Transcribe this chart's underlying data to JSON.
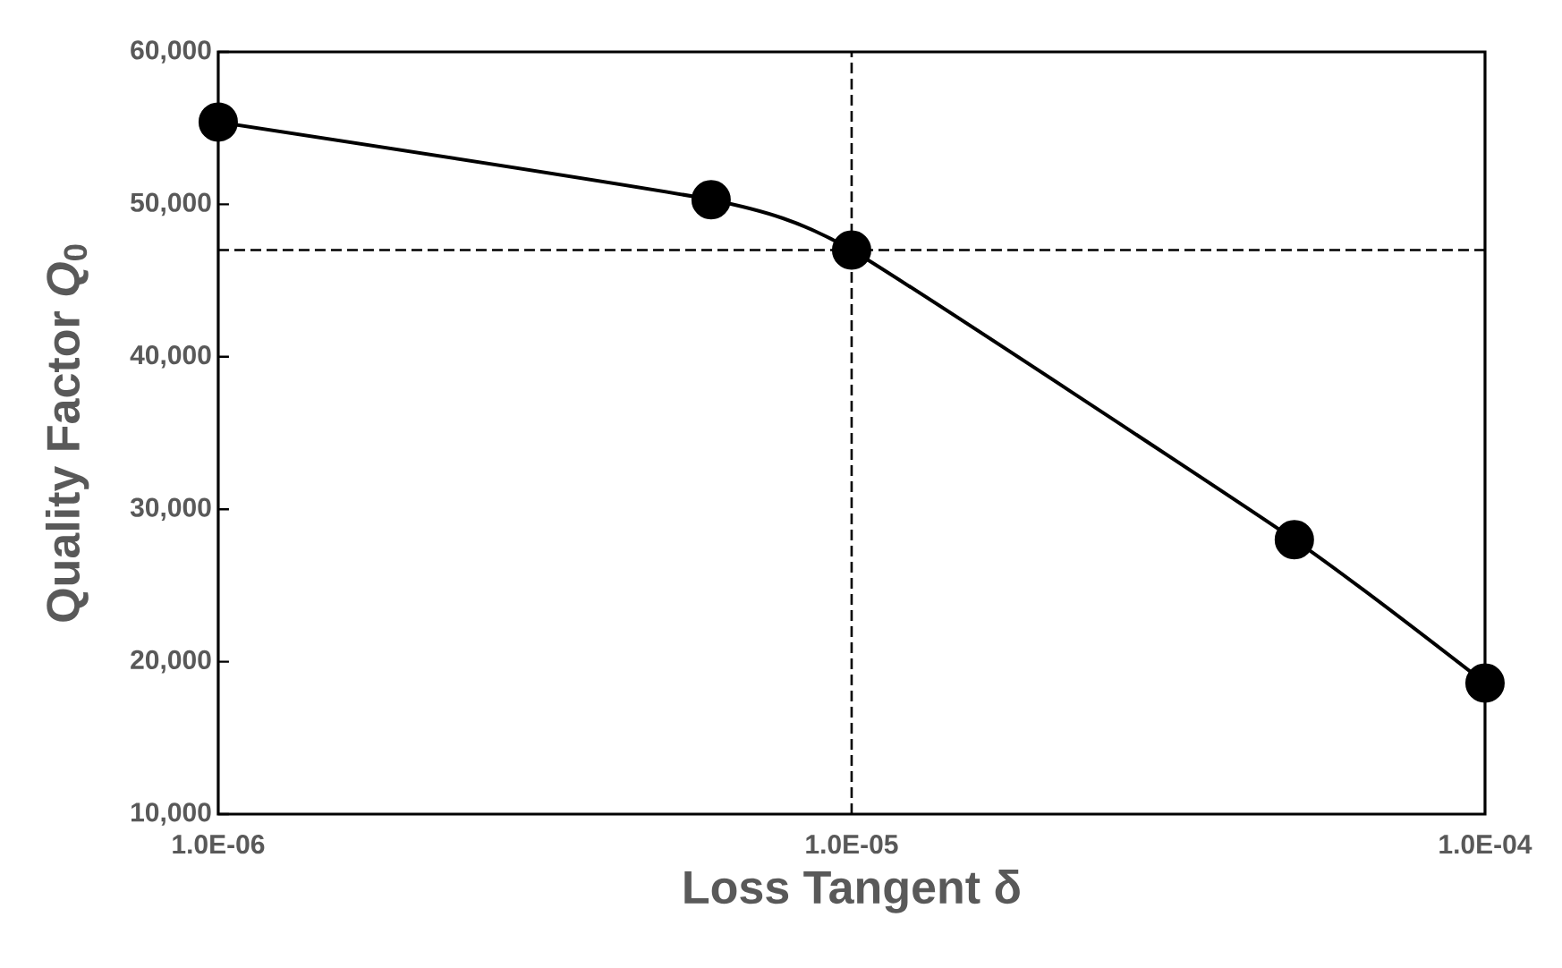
{
  "chart_data": {
    "type": "line",
    "xlabel": "Loss Tangent δ",
    "ylabel": "Quality Factor *Q*$_{0}$",
    "log": "x",
    "x": [
      1e-06,
      6e-06,
      1e-05,
      5e-05,
      0.0001
    ],
    "series": [
      {
        "color": "#000000",
        "values": [
          55400,
          50300,
          47000,
          28000,
          18600
        ]
      }
    ],
    "xlim": [
      1e-06,
      0.0001
    ],
    "ylim": [
      10000,
      60000
    ],
    "xticks": [
      {
        "value": 1e-06,
        "label": "1.0E-06"
      },
      {
        "value": 1e-05,
        "label": "1.0E-05"
      },
      {
        "value": 0.0001,
        "label": "1.0E-04"
      }
    ],
    "yticks": [
      {
        "value": 10000,
        "label": "10,000"
      },
      {
        "value": 20000,
        "label": "20,000"
      },
      {
        "value": 30000,
        "label": "30,000"
      },
      {
        "value": 40000,
        "label": "40,000"
      },
      {
        "value": 50000,
        "label": "50,000"
      },
      {
        "value": 60000,
        "label": "60,000"
      }
    ],
    "ref_lines": [
      {
        "axis": "x",
        "value": 1e-05,
        "line_style": "dashed"
      },
      {
        "axis": "y",
        "value": 47000,
        "line_style": "dashed"
      }
    ],
    "marker": "circle"
  }
}
